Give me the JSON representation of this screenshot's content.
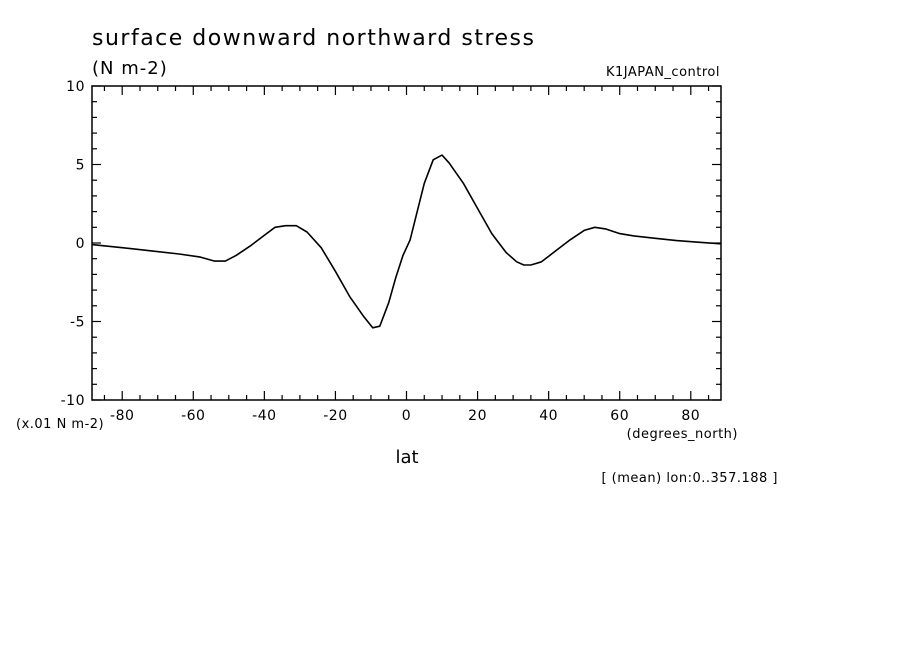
{
  "header": {
    "title": "surface downward northward stress",
    "units": "(N m-2)",
    "run_name": "K1JAPAN_control"
  },
  "axes": {
    "y_scale_note": "(x.01 N m-2)",
    "x_units": "(degrees_north)",
    "x_label": "lat",
    "footer_note": "[ (mean) lon:0..357.188 ]"
  },
  "chart_data": {
    "type": "line",
    "title": "surface downward northward stress",
    "xlabel": "lat",
    "ylabel": "",
    "xlim": [
      -88.5,
      88.5
    ],
    "ylim": [
      -10,
      10
    ],
    "x_ticks": [
      -80,
      -60,
      -40,
      -20,
      0,
      20,
      40,
      60,
      80
    ],
    "x_tick_labels": [
      "-80",
      "-60",
      "-40",
      "-20",
      "0",
      "20",
      "40",
      "60",
      "80"
    ],
    "y_ticks": [
      -10,
      -5,
      0,
      5,
      10
    ],
    "y_tick_labels": [
      "-10",
      "-5",
      "0",
      "5",
      "10"
    ],
    "grid": false,
    "series": [
      {
        "x": [
          -88.5,
          -80,
          -72,
          -64,
          -58,
          -54,
          -51,
          -48,
          -44,
          -40,
          -37,
          -34,
          -31,
          -28,
          -24,
          -20,
          -16,
          -12,
          -9.5,
          -7.5,
          -5,
          -3,
          -1,
          1,
          3,
          5,
          7.5,
          10,
          12,
          16,
          20,
          24,
          28,
          31,
          33,
          35,
          38,
          42,
          46,
          50,
          53,
          56,
          60,
          64,
          70,
          76,
          82,
          88.5
        ],
        "y": [
          -0.1,
          -0.3,
          -0.5,
          -0.7,
          -0.9,
          -1.15,
          -1.15,
          -0.8,
          -0.2,
          0.5,
          1.0,
          1.1,
          1.1,
          0.7,
          -0.3,
          -1.8,
          -3.4,
          -4.7,
          -5.4,
          -5.3,
          -3.8,
          -2.2,
          -0.8,
          0.2,
          2.0,
          3.8,
          5.3,
          5.6,
          5.1,
          3.8,
          2.2,
          0.6,
          -0.6,
          -1.2,
          -1.4,
          -1.4,
          -1.2,
          -0.5,
          0.2,
          0.8,
          1.0,
          0.9,
          0.6,
          0.45,
          0.3,
          0.15,
          0.05,
          -0.05
        ]
      }
    ]
  }
}
